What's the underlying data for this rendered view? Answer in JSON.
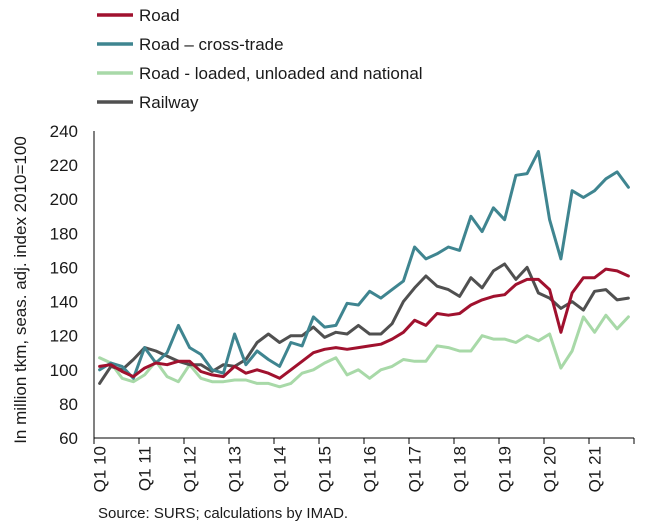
{
  "chart_data": {
    "type": "line",
    "ylabel": "In million tkm, seas. adj. index 2010=100",
    "ylim": [
      60,
      240
    ],
    "yticks": [
      60,
      80,
      100,
      120,
      140,
      160,
      180,
      200,
      220,
      240
    ],
    "xtick_labels": [
      "Q1 10",
      "Q1 11",
      "Q1 12",
      "Q1 13",
      "Q1 14",
      "Q1 15",
      "Q1 16",
      "Q1 17",
      "Q1 18",
      "Q1 19",
      "Q1 20",
      "Q1 21"
    ],
    "x_start": {
      "year": 2010,
      "quarter": 1
    },
    "points_per_year": 4,
    "grid": false,
    "legend_position": "top-left",
    "series": [
      {
        "name": "Road",
        "color": "#a0112e",
        "values": [
          102,
          103,
          99,
          96,
          101,
          104,
          103,
          105,
          105,
          99,
          97,
          96,
          102,
          98,
          100,
          98,
          95,
          100,
          105,
          110,
          112,
          113,
          112,
          113,
          114,
          115,
          118,
          122,
          129,
          126,
          133,
          132,
          133,
          138,
          141,
          143,
          144,
          150,
          153,
          153,
          147,
          122,
          145,
          154,
          154,
          159,
          158,
          155
        ]
      },
      {
        "name": "Road – cross-trade",
        "color": "#3f8590",
        "values": [
          100,
          104,
          102,
          95,
          113,
          104,
          110,
          126,
          113,
          109,
          100,
          98,
          121,
          103,
          111,
          106,
          102,
          116,
          114,
          131,
          125,
          126,
          139,
          138,
          146,
          142,
          147,
          152,
          172,
          165,
          168,
          172,
          170,
          190,
          181,
          195,
          188,
          214,
          215,
          228,
          188,
          165,
          205,
          201,
          205,
          212,
          216,
          207
        ]
      },
      {
        "name": "Road - loaded, unloaded and national",
        "color": "#a8d9a8",
        "values": [
          107,
          104,
          95,
          93,
          97,
          105,
          96,
          93,
          103,
          95,
          93,
          93,
          94,
          94,
          92,
          92,
          90,
          92,
          98,
          100,
          104,
          107,
          97,
          100,
          95,
          100,
          102,
          106,
          105,
          105,
          114,
          113,
          111,
          111,
          120,
          118,
          118,
          116,
          120,
          117,
          121,
          101,
          111,
          131,
          122,
          132,
          124,
          131
        ]
      },
      {
        "name": "Railway",
        "color": "#505050",
        "values": [
          92,
          102,
          100,
          106,
          113,
          111,
          108,
          105,
          103,
          103,
          99,
          103,
          102,
          106,
          116,
          121,
          116,
          120,
          120,
          125,
          119,
          122,
          121,
          126,
          121,
          121,
          127,
          140,
          148,
          155,
          149,
          147,
          143,
          154,
          148,
          158,
          162,
          153,
          160,
          145,
          142,
          136,
          140,
          135,
          146,
          147,
          141,
          142
        ]
      }
    ]
  },
  "source_note": "Source: SURS; calculations by IMAD."
}
